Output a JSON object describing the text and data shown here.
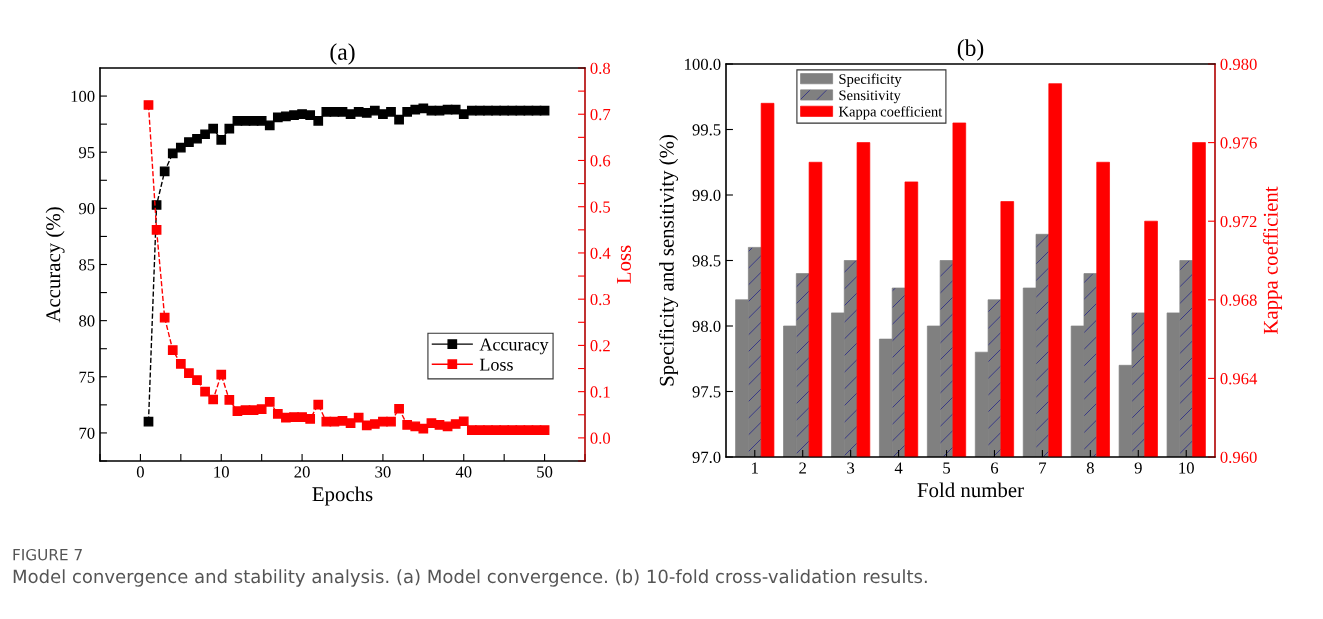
{
  "chart_data": [
    {
      "type": "line",
      "title": "(a)",
      "xlabel": "Epochs",
      "ylabel": "Accuracy (%)",
      "y2label": "Loss",
      "x": [
        1,
        2,
        3,
        4,
        5,
        6,
        7,
        8,
        9,
        10,
        11,
        12,
        13,
        14,
        15,
        16,
        17,
        18,
        19,
        20,
        21,
        22,
        23,
        24,
        25,
        26,
        27,
        28,
        29,
        30,
        31,
        32,
        33,
        34,
        35,
        36,
        37,
        38,
        39,
        40,
        41,
        42,
        43,
        44,
        45,
        46,
        47,
        48,
        49,
        50
      ],
      "series": [
        {
          "name": "Accuracy",
          "color": "#000000",
          "values": [
            71.0,
            90.3,
            93.3,
            94.9,
            95.4,
            95.9,
            96.2,
            96.6,
            97.1,
            96.1,
            97.1,
            97.8,
            97.8,
            97.8,
            97.8,
            97.4,
            98.1,
            98.2,
            98.3,
            98.4,
            98.3,
            97.8,
            98.6,
            98.6,
            98.6,
            98.4,
            98.6,
            98.5,
            98.7,
            98.4,
            98.6,
            97.9,
            98.6,
            98.8,
            98.9,
            98.7,
            98.7,
            98.8,
            98.8,
            98.4,
            98.7,
            98.7,
            98.7,
            98.7,
            98.7,
            98.7,
            98.7,
            98.7,
            98.7,
            98.7
          ]
        },
        {
          "name": "Loss",
          "color": "#ff0000",
          "axis": "y2",
          "values": [
            0.72,
            0.45,
            0.26,
            0.19,
            0.16,
            0.14,
            0.125,
            0.1,
            0.083,
            0.137,
            0.082,
            0.058,
            0.06,
            0.06,
            0.062,
            0.078,
            0.052,
            0.044,
            0.045,
            0.045,
            0.041,
            0.072,
            0.035,
            0.035,
            0.037,
            0.032,
            0.044,
            0.027,
            0.03,
            0.035,
            0.035,
            0.063,
            0.028,
            0.025,
            0.02,
            0.032,
            0.028,
            0.025,
            0.03,
            0.036,
            0.017,
            0.017,
            0.017,
            0.017,
            0.017,
            0.017,
            0.017,
            0.017,
            0.017,
            0.017
          ]
        }
      ],
      "xlim": [
        -5,
        55
      ],
      "xticks": [
        {
          "value": -5,
          "label": null
        },
        0,
        {
          "value": 5,
          "label": null
        },
        10,
        {
          "value": 15,
          "label": null
        },
        20,
        {
          "value": 25,
          "label": null
        },
        30,
        {
          "value": 35,
          "label": null
        },
        40,
        {
          "value": 45,
          "label": null
        },
        50,
        {
          "value": 55,
          "label": null
        }
      ],
      "ylim": [
        67.5,
        102.5
      ],
      "yticks": [
        {
          "value": 67.5,
          "label": null
        },
        70,
        {
          "value": 72.5,
          "label": null
        },
        75,
        {
          "value": 77.5,
          "label": null
        },
        80,
        {
          "value": 82.5,
          "label": null
        },
        85,
        {
          "value": 87.5,
          "label": null
        },
        90,
        {
          "value": 92.5,
          "label": null
        },
        95,
        {
          "value": 97.5,
          "label": null
        },
        100
      ],
      "y2lim": [
        -0.05,
        0.8
      ],
      "y2ticks": [
        {
          "value": -0.05,
          "label": null
        },
        {
          "value": 0,
          "label": "0.0"
        },
        {
          "value": 0.05,
          "label": null
        },
        0.1,
        {
          "value": 0.15,
          "label": null
        },
        0.2,
        {
          "value": 0.25,
          "label": null
        },
        0.3,
        {
          "value": 0.35,
          "label": null
        },
        0.4,
        {
          "value": 0.45,
          "label": null
        },
        0.5,
        {
          "value": 0.55,
          "label": null
        },
        0.6,
        {
          "value": 0.65,
          "label": null
        },
        0.7,
        {
          "value": 0.75,
          "label": null
        },
        0.8
      ],
      "marker": "square",
      "line_style": "dashed",
      "legend": "bottom right",
      "grid": false,
      "annotations": [
        "FIGURE 7",
        "Model convergence and stability analysis. (a) Model convergence. (b) 10-fold cross-validation results."
      ]
    },
    {
      "type": "bar",
      "title": "(b)",
      "xlabel": "Fold number",
      "ylabel": "Specificity and sensitivity (%)",
      "y2label": "Kappa coefficient",
      "categories": [
        "1",
        "2",
        "3",
        "4",
        "5",
        "6",
        "7",
        "8",
        "9",
        "10"
      ],
      "series": [
        {
          "name": "Specificity",
          "color": "#808080",
          "values": [
            98.2,
            98.0,
            98.1,
            97.9,
            98.0,
            97.8,
            98.29,
            98.0,
            97.7,
            98.1
          ]
        },
        {
          "name": "Sensitivity",
          "color": "#808080",
          "values": [
            98.6,
            98.4,
            98.5,
            98.29,
            98.5,
            98.2,
            98.7,
            98.4,
            98.1,
            98.5
          ]
        },
        {
          "name": "Kappa coefficient",
          "color": "#ff0000",
          "axis": "y2",
          "values": [
            0.978,
            0.975,
            0.976,
            0.974,
            0.977,
            0.973,
            0.979,
            0.975,
            0.972,
            0.976
          ]
        }
      ],
      "ylim": [
        97,
        100
      ],
      "yticks": [
        {
          "value": 97,
          "label": "97.0"
        },
        97.5,
        {
          "value": 98,
          "label": "98.0"
        },
        98.5,
        {
          "value": 99,
          "label": "99.0"
        },
        99.5,
        {
          "value": 100,
          "label": "100.0"
        }
      ],
      "y2lim": [
        0.96,
        0.98
      ],
      "y2ticks": [
        {
          "value": 0.96,
          "label": "0.960"
        },
        0.964,
        0.968,
        0.972,
        0.976,
        {
          "value": 0.98,
          "label": "0.980"
        }
      ],
      "legend": "top left",
      "grid": false
    }
  ]
}
